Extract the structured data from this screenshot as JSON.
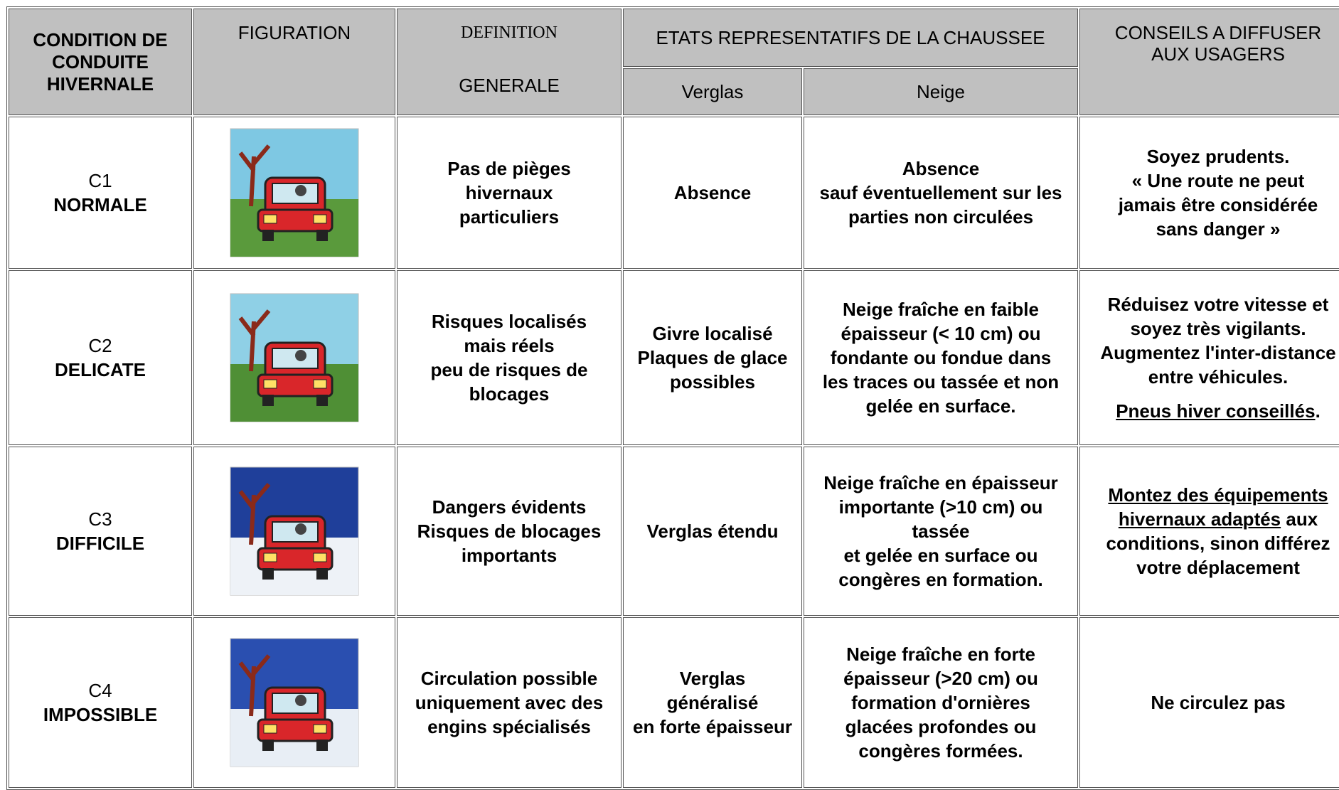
{
  "header": {
    "condition": "CONDITION DE\nCONDUITE\nHIVERNALE",
    "figuration": "FIGURATION",
    "definition_top": "DEFINITION",
    "definition_bottom": "GENERALE",
    "etats": "ETATS REPRESENTATIFS DE LA CHAUSSEE",
    "verglas": "Verglas",
    "neige": "Neige",
    "conseils": "CONSEILS A DIFFUSER\nAUX USAGERS"
  },
  "rows": [
    {
      "code": "C1",
      "level": "NORMALE",
      "definition": "Pas de pièges\nhivernaux\nparticuliers",
      "verglas": "Absence",
      "neige": "Absence\nsauf éventuellement sur les\nparties non circulées",
      "conseils": [
        "Soyez prudents.\n« Une route ne peut\njamais être considérée\nsans danger »"
      ]
    },
    {
      "code": "C2",
      "level": "DELICATE",
      "definition": "Risques localisés\nmais réels\npeu de risques de\nblocages",
      "verglas": "Givre localisé\nPlaques de glace\npossibles",
      "neige": "Neige fraîche en faible\népaisseur (< 10 cm) ou\nfondante ou fondue dans\nles  traces ou tassée et non\ngelée en surface.",
      "conseils": [
        "Réduisez votre vitesse et\nsoyez très vigilants.\nAugmentez l'inter-distance\nentre véhicules.",
        "Pneus hiver conseillés",
        "."
      ]
    },
    {
      "code": "C3",
      "level": "DIFFICILE",
      "definition": "Dangers évidents\nRisques de blocages\nimportants",
      "verglas": "Verglas étendu",
      "neige": "Neige fraîche en épaisseur\nimportante (>10 cm) ou\ntassée\net gelée en surface ou\ncongères en formation.",
      "conseils": [
        "Montez des équipements\nhivernaux adaptés",
        " aux\nconditions, sinon différez\nvotre déplacement"
      ]
    },
    {
      "code": "C4",
      "level": "IMPOSSIBLE",
      "definition": "Circulation possible\nuniquement avec des\nengins spécialisés",
      "verglas": "Verglas\ngénéralisé\nen forte épaisseur",
      "neige": "Neige fraîche en forte\népaisseur (>20 cm) ou\nformation d'ornières\nglacées profondes ou\ncongères formées.",
      "conseils": [
        "Ne circulez pas"
      ]
    }
  ]
}
